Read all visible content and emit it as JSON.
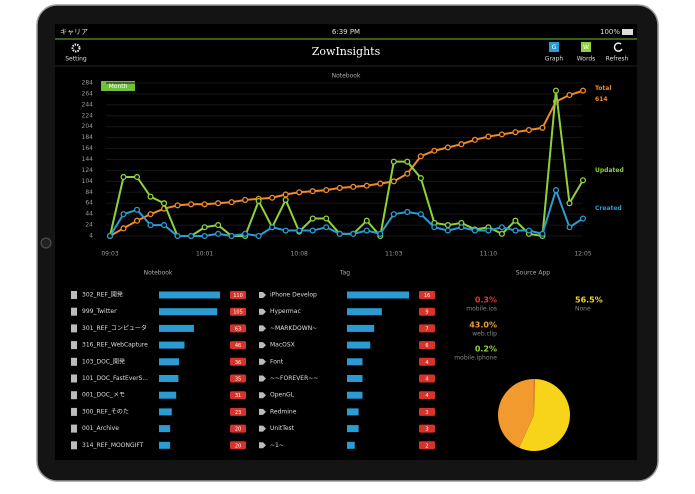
{
  "status_bar": {
    "carrier": "キャリア",
    "time": "6:39 PM",
    "battery": "100%"
  },
  "nav_bar": {
    "setting": "Setting",
    "title": "ZowInsights",
    "graph_icon": "G",
    "graph": "Graph",
    "words_icon": "W",
    "words": "Words",
    "refresh": "Refresh"
  },
  "range_button": "Month",
  "chart_data": {
    "type": "line",
    "title": "Notebook",
    "categories": [
      "09:03",
      null,
      null,
      null,
      null,
      null,
      null,
      "10:01",
      null,
      null,
      null,
      null,
      null,
      null,
      "10:08",
      null,
      null,
      null,
      null,
      null,
      null,
      "11:03",
      null,
      null,
      null,
      null,
      null,
      null,
      "11:10",
      null,
      null,
      null,
      null,
      null,
      null,
      "12:05"
    ],
    "series": [
      {
        "name": "Total",
        "color": "#f08a2c",
        "values": [
          4,
          18,
          32,
          44,
          54,
          60,
          62,
          62,
          64,
          66,
          70,
          72,
          74,
          80,
          84,
          86,
          88,
          92,
          94,
          96,
          100,
          104,
          118,
          150,
          160,
          166,
          172,
          180,
          186,
          190,
          194,
          198,
          202,
          250,
          262,
          270
        ]
      },
      {
        "name": "Updated",
        "color": "#8fd13a",
        "values": [
          4,
          112,
          112,
          76,
          64,
          4,
          4,
          20,
          24,
          4,
          4,
          68,
          20,
          70,
          12,
          36,
          36,
          8,
          8,
          32,
          4,
          140,
          140,
          110,
          28,
          24,
          28,
          16,
          20,
          8,
          32,
          8,
          4,
          270,
          64,
          106
        ]
      },
      {
        "name": "Created",
        "color": "#2a9bd3",
        "values": [
          4,
          44,
          52,
          24,
          24,
          4,
          4,
          4,
          8,
          4,
          8,
          4,
          20,
          14,
          14,
          14,
          20,
          8,
          8,
          14,
          8,
          44,
          48,
          44,
          20,
          14,
          20,
          14,
          14,
          20,
          14,
          14,
          8,
          88,
          20,
          36
        ]
      }
    ],
    "total_annotation": "614",
    "ylim": [
      4,
      284
    ],
    "yticks": [
      284,
      264,
      244,
      224,
      204,
      184,
      164,
      144,
      124,
      104,
      84,
      64,
      44,
      24,
      4
    ]
  },
  "notebook_list": {
    "title": "Notebook",
    "items": [
      {
        "name": "302_REF_開発",
        "count": 110
      },
      {
        "name": "999_Twitter",
        "count": 105
      },
      {
        "name": "301_REF_コンピュータ",
        "count": 63
      },
      {
        "name": "316_REF_WebCapture",
        "count": 46
      },
      {
        "name": "103_DOC_開発",
        "count": 36
      },
      {
        "name": "101_DOC_FastEverS...",
        "count": 35
      },
      {
        "name": "001_DOC_メモ",
        "count": 31
      },
      {
        "name": "300_REF_そのた",
        "count": 23
      },
      {
        "name": "001_Archive",
        "count": 20
      },
      {
        "name": "314_REF_MOONGIFT",
        "count": 20
      }
    ]
  },
  "tag_list": {
    "title": "Tag",
    "items": [
      {
        "name": "iPhone Develop",
        "count": 16
      },
      {
        "name": "Hypermac",
        "count": 9
      },
      {
        "name": "~MARKDOWN~",
        "count": 7
      },
      {
        "name": "MacOSX",
        "count": 6
      },
      {
        "name": "Font",
        "count": 4
      },
      {
        "name": "~~FOREVER~~",
        "count": 4
      },
      {
        "name": "OpenGL",
        "count": 4
      },
      {
        "name": "Redmine",
        "count": 3
      },
      {
        "name": "UnitTest",
        "count": 3
      },
      {
        "name": "~1~",
        "count": 2
      }
    ]
  },
  "source_app": {
    "type": "pie",
    "title": "Source App",
    "names": [
      "mobile.ios",
      "None",
      "web.clip",
      "mobile.iphone"
    ],
    "values": [
      0.3,
      56.5,
      43.0,
      0.2
    ],
    "value_labels": [
      "0.3%",
      "56.5%",
      "43.0%",
      "0.2%"
    ],
    "colors": [
      "#e8352c",
      "#f7d31a",
      "#f29a2e",
      "#8fd13a"
    ]
  }
}
